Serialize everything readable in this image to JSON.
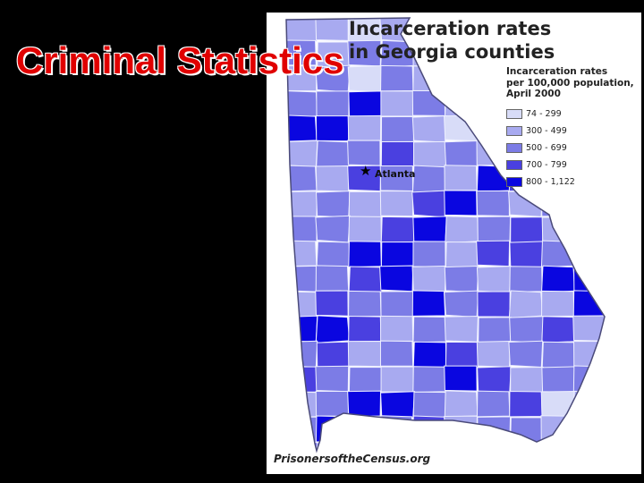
{
  "slide": {
    "title": "Criminal Statistics"
  },
  "map": {
    "title_line1": "Incarceration rates",
    "title_line2": "in Georgia counties",
    "city_label": "Atlanta",
    "city_marker_icon": "star-icon",
    "credit": "PrisonersoftheCensus.org",
    "background_color": "#ffffff",
    "border_color": "#4a4a7a",
    "legend": {
      "title_lines": [
        "Incarceration rates",
        "per 100,000 population,",
        "April 2000"
      ],
      "items": [
        {
          "label": "74 - 299",
          "color": "#d8dcf8"
        },
        {
          "label": "300 - 499",
          "color": "#a8aaf0"
        },
        {
          "label": "500 - 699",
          "color": "#7c7ce6"
        },
        {
          "label": "700 - 799",
          "color": "#4a40e0"
        },
        {
          "label": "800 - 1,122",
          "color": "#0a06e0"
        }
      ]
    }
  }
}
